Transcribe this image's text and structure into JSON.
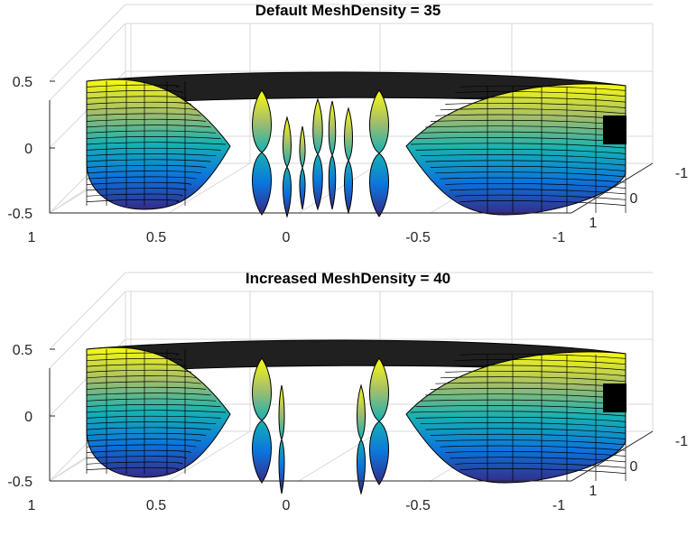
{
  "chart_data": [
    {
      "type": "surface",
      "title": "Default MeshDensity = 35",
      "xlabel": "",
      "ylabel": "",
      "zlabel": "",
      "x_ticks": [
        "1",
        "0.5",
        "0",
        "-0.5",
        "-1"
      ],
      "y_ticks": [
        "-1",
        "0",
        "1"
      ],
      "z_ticks": [
        "0.5",
        "0",
        "-0.5"
      ],
      "xlim": [
        -1,
        1
      ],
      "ylim": [
        -1,
        1
      ],
      "zlim": [
        -0.5,
        0.5
      ],
      "grid": "on",
      "colormap": "parula",
      "mesh_density": 35
    },
    {
      "type": "surface",
      "title": "Increased MeshDensity = 40",
      "xlabel": "",
      "ylabel": "",
      "zlabel": "",
      "x_ticks": [
        "1",
        "0.5",
        "0",
        "-0.5",
        "-1"
      ],
      "y_ticks": [
        "-1",
        "0",
        "1"
      ],
      "z_ticks": [
        "0.5",
        "0",
        "-0.5"
      ],
      "xlim": [
        -1,
        1
      ],
      "ylim": [
        -1,
        1
      ],
      "zlim": [
        -0.5,
        0.5
      ],
      "grid": "on",
      "colormap": "parula",
      "mesh_density": 40
    }
  ]
}
